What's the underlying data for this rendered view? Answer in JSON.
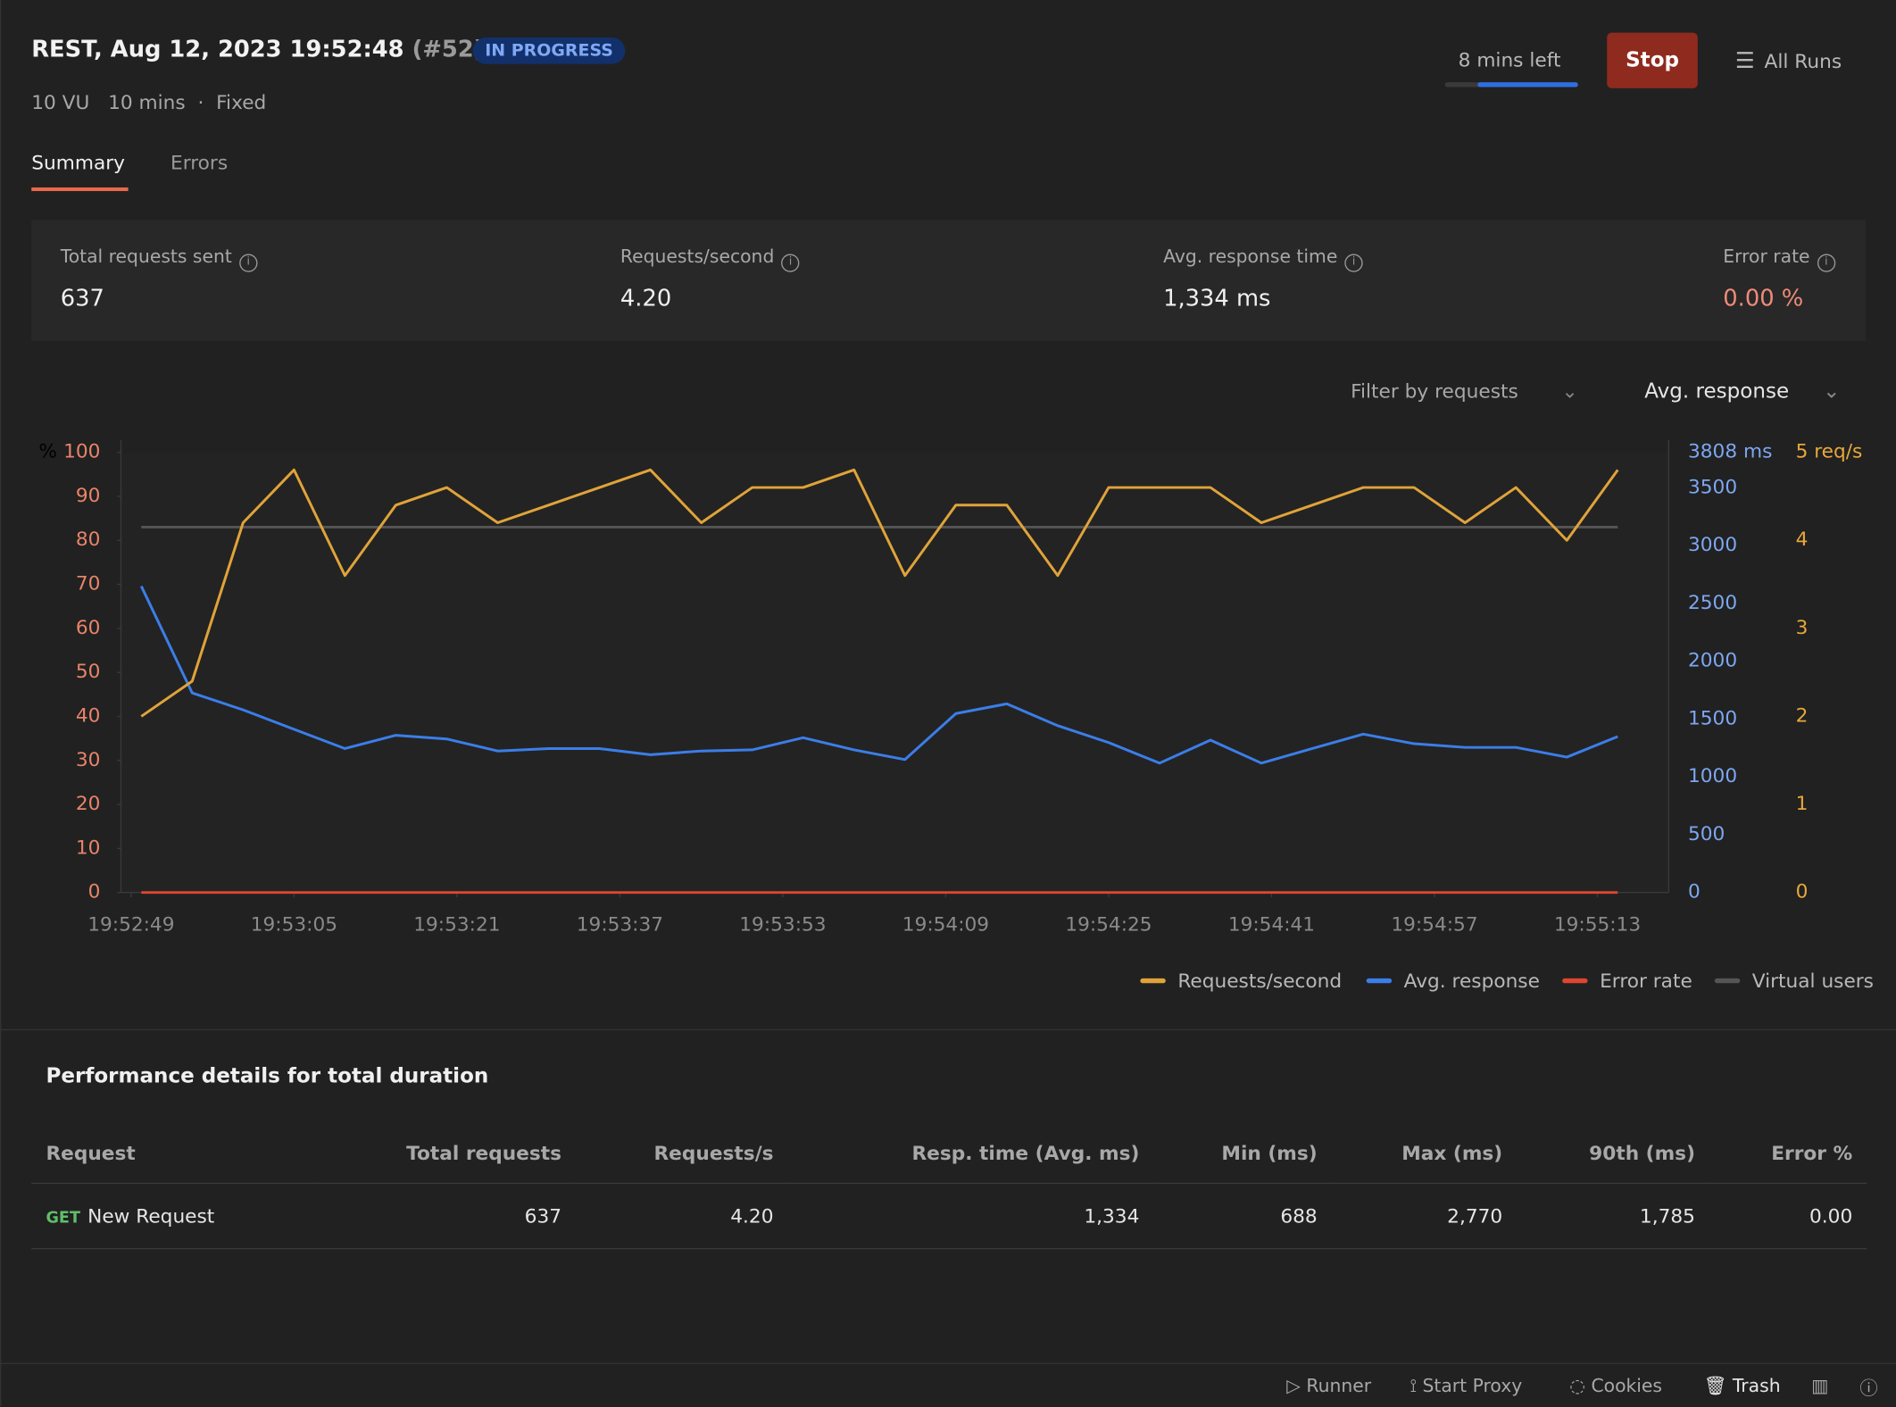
{
  "header": {
    "title": "REST, Aug 12, 2023 19:52:48",
    "run": "(#52)",
    "status": "IN PROGRESS",
    "meta": [
      "10 VU",
      "10 mins",
      "Fixed"
    ],
    "time_left": "8 mins left",
    "stop": "Stop",
    "all_runs": "All Runs"
  },
  "tabs": [
    "Summary",
    "Errors"
  ],
  "stats": [
    {
      "label": "Total requests sent",
      "value": "637"
    },
    {
      "label": "Requests/second",
      "value": "4.20"
    },
    {
      "label": "Avg. response time",
      "value": "1,334 ms"
    },
    {
      "label": "Error rate",
      "value": "0.00 %"
    }
  ],
  "filters": [
    "Filter by requests",
    "Avg. response"
  ],
  "chart_data": {
    "type": "line",
    "ylabel": "%",
    "x": [
      "19:52:50",
      "19:52:55",
      "19:53:00",
      "19:53:05",
      "19:53:10",
      "19:53:15",
      "19:53:20",
      "19:53:25",
      "19:53:30",
      "19:53:35",
      "19:53:40",
      "19:53:45",
      "19:53:50",
      "19:53:55",
      "19:54:00",
      "19:54:05",
      "19:54:10",
      "19:54:15",
      "19:54:20",
      "19:54:25",
      "19:54:30",
      "19:54:35",
      "19:54:40",
      "19:54:45",
      "19:54:50",
      "19:54:55",
      "19:55:00",
      "19:55:05",
      "19:55:10",
      "19:55:15"
    ],
    "xlim": [
      "19:52:48",
      "19:55:20"
    ],
    "xticks": [
      "19:52:49",
      "19:53:05",
      "19:53:21",
      "19:53:37",
      "19:53:53",
      "19:54:09",
      "19:54:25",
      "19:54:41",
      "19:54:57",
      "19:55:13"
    ],
    "ylim": [
      0,
      100
    ],
    "yticks": [
      0,
      10,
      20,
      30,
      40,
      50,
      60,
      70,
      80,
      90,
      100
    ],
    "y2lim": [
      0,
      3808
    ],
    "y2ticks": [
      0,
      500,
      1000,
      1500,
      2000,
      2500,
      3000,
      3500,
      {
        "value": 3808,
        "label": "3808 ms"
      }
    ],
    "y3lim": [
      0,
      5
    ],
    "y3ticks": [
      0,
      1,
      2,
      3,
      4,
      {
        "value": 5,
        "label": "5 req/s"
      }
    ],
    "ytick_color": "#e8846a",
    "y2tick_color": "#7da7f0",
    "y3tick_color": "#e8a83a",
    "series": [
      {
        "name": "Requests/second",
        "color": "#e0a33a",
        "axis": "y3",
        "values": [
          2.0,
          2.4,
          4.2,
          4.8,
          3.6,
          4.4,
          4.6,
          4.2,
          4.4,
          4.6,
          4.8,
          4.2,
          4.6,
          4.6,
          4.8,
          3.6,
          4.4,
          4.4,
          3.6,
          4.6,
          4.6,
          4.6,
          4.2,
          4.4,
          4.6,
          4.6,
          4.2,
          4.6,
          4.0,
          4.8
        ]
      },
      {
        "name": "Avg. response",
        "color": "#3b7ee8",
        "axis": "y2",
        "values": [
          2650,
          1726,
          1580,
          1412,
          1245,
          1360,
          1328,
          1224,
          1245,
          1245,
          1192,
          1224,
          1234,
          1339,
          1234,
          1150,
          1548,
          1632,
          1443,
          1297,
          1119,
          1318,
          1119,
          1245,
          1370,
          1287,
          1255,
          1255,
          1171,
          1349
        ]
      },
      {
        "name": "Error rate",
        "color": "#e0452f",
        "axis": "y",
        "values": [
          0,
          0,
          0,
          0,
          0,
          0,
          0,
          0,
          0,
          0,
          0,
          0,
          0,
          0,
          0,
          0,
          0,
          0,
          0,
          0,
          0,
          0,
          0,
          0,
          0,
          0,
          0,
          0,
          0,
          0
        ]
      },
      {
        "name": "Virtual users",
        "color": "#555555",
        "axis": "y",
        "values": [
          83,
          83,
          83,
          83,
          83,
          83,
          83,
          83,
          83,
          83,
          83,
          83,
          83,
          83,
          83,
          83,
          83,
          83,
          83,
          83,
          83,
          83,
          83,
          83,
          83,
          83,
          83,
          83,
          83,
          83
        ]
      }
    ]
  },
  "table": {
    "title": "Performance details for total duration",
    "columns": [
      "Request",
      "Total requests",
      "Requests/s",
      "Resp. time (Avg. ms)",
      "Min (ms)",
      "Max (ms)",
      "90th (ms)",
      "Error %"
    ],
    "rows": [
      [
        "GET",
        "New Request",
        "637",
        "4.20",
        "1,334",
        "688",
        "2,770",
        "1,785",
        "0.00"
      ]
    ]
  },
  "footer": [
    "Runner",
    "Start Proxy",
    "Cookies",
    "Trash"
  ]
}
